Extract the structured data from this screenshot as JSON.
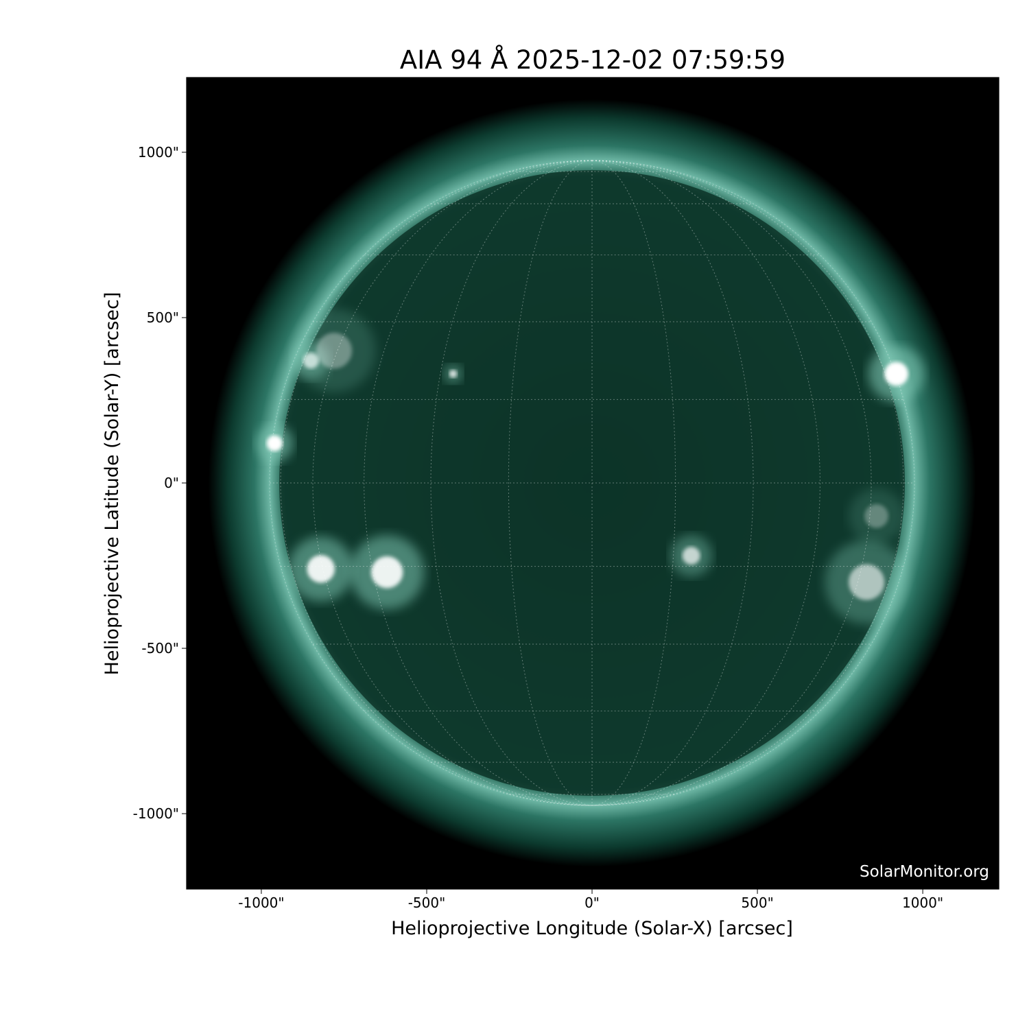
{
  "chart_data": {
    "type": "heatmap",
    "title": "AIA 94 Å 2025-12-02 07:59:59",
    "xlabel": "Helioprojective Longitude (Solar-X) [arcsec]",
    "ylabel": "Helioprojective Latitude (Solar-Y) [arcsec]",
    "xlim": [
      -1226,
      1230
    ],
    "ylim": [
      -1228,
      1226
    ],
    "xticks": [
      -1000,
      -500,
      0,
      500,
      1000
    ],
    "xtick_labels": [
      "-1000\"",
      "-500\"",
      "0\"",
      "500\"",
      "1000\""
    ],
    "yticks": [
      1000,
      500,
      0,
      -500,
      -1000
    ],
    "ytick_labels": [
      "1000\"",
      "500\"",
      "0\"",
      "-500\"",
      "-1000\""
    ],
    "solar_radius_arcsec": 975,
    "heliographic_grid_spacing_deg": 15,
    "colormap": "sdoaia94",
    "colors": {
      "background": "#000000",
      "disk": "#0c3327",
      "corona": "#3f8f7c",
      "bright": "#ffffff",
      "grid": "#ffffff"
    },
    "watermark": "SolarMonitor.org"
  }
}
